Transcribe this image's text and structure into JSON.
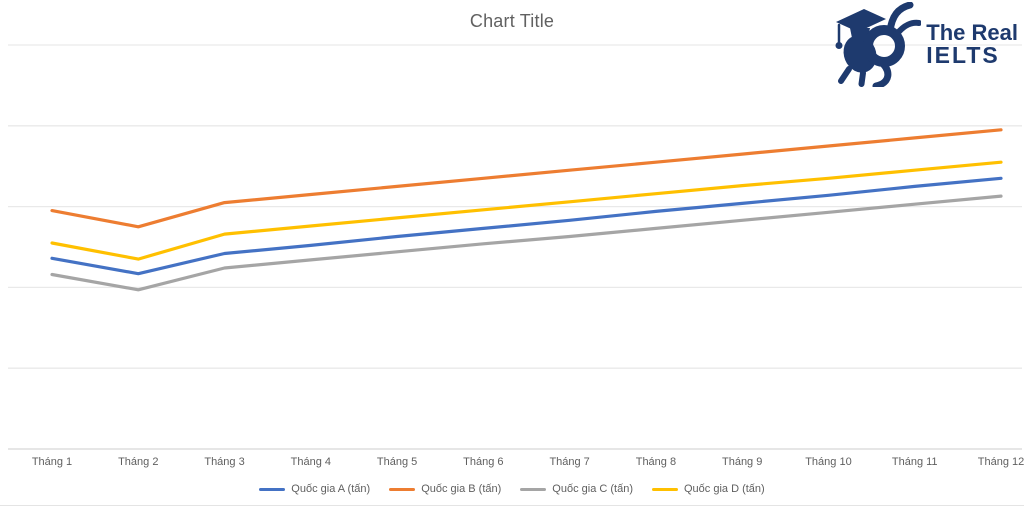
{
  "logo": {
    "line1": "The Real",
    "line2": "IELTS",
    "color": "#1e3a6e",
    "mascot_icon": "snail-graduate-mascot"
  },
  "chart_data": {
    "type": "line",
    "title": "Chart Title",
    "categories": [
      "Tháng 1",
      "Tháng 2",
      "Tháng 3",
      "Tháng 4",
      "Tháng 5",
      "Tháng 6",
      "Tháng 7",
      "Tháng 8",
      "Tháng 9",
      "Tháng 10",
      "Tháng 11",
      "Tháng 12"
    ],
    "series": [
      {
        "name": "Quốc gia A (tấn)",
        "color": "#4472C4",
        "values": [
          23.6,
          21.7,
          24.2,
          25.2,
          26.3,
          27.3,
          28.3,
          29.4,
          30.4,
          31.4,
          32.5,
          33.5
        ]
      },
      {
        "name": "Quốc gia B (tấn)",
        "color": "#ED7D31",
        "values": [
          29.5,
          27.5,
          30.5,
          31.5,
          32.5,
          33.5,
          34.5,
          35.5,
          36.5,
          37.5,
          38.5,
          39.5
        ]
      },
      {
        "name": "Quốc gia C (tấn)",
        "color": "#A5A5A5",
        "values": [
          21.6,
          19.7,
          22.4,
          23.4,
          24.4,
          25.4,
          26.3,
          27.3,
          28.3,
          29.3,
          30.3,
          31.3
        ]
      },
      {
        "name": "Quốc gia D (tấn)",
        "color": "#FFC000",
        "values": [
          25.5,
          23.5,
          26.6,
          27.6,
          28.6,
          29.6,
          30.6,
          31.6,
          32.6,
          33.5,
          34.5,
          35.5
        ]
      }
    ],
    "xlabel": "",
    "ylabel": "",
    "ylim": [
      0,
      50
    ],
    "grid_step": 10,
    "grid": true,
    "y_axis_labels_visible": false,
    "legend_position": "bottom"
  },
  "colors": {
    "gridline": "#e9e9e9",
    "axis_line": "#d6d6d6",
    "text": "#5f5f5f"
  }
}
